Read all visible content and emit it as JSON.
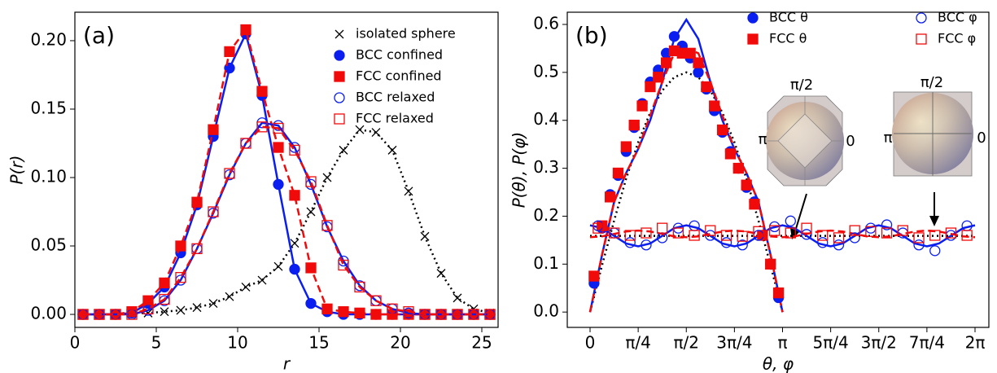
{
  "chart_data": [
    {
      "type": "line",
      "panel_label": "(a)",
      "x_label": "r",
      "y_label": "P(r)",
      "xlim": [
        0,
        26
      ],
      "xticks": [
        0,
        5,
        10,
        15,
        20,
        25
      ],
      "ylim": [
        -0.0095,
        0.2208
      ],
      "yticks": [
        {
          "value": 0,
          "label": "0.00"
        },
        {
          "value": 0.05,
          "label": "0.05"
        },
        {
          "value": 0.1,
          "label": "0.10"
        },
        {
          "value": 0.15,
          "label": "0.15"
        },
        {
          "value": 0.2,
          "label": "0.20"
        }
      ],
      "legend": "upper right",
      "x": [
        0.5,
        1.5,
        2.5,
        3.5,
        4.5,
        5.5,
        6.5,
        7.5,
        8.5,
        9.5,
        10.5,
        11.5,
        12.5,
        13.5,
        14.5,
        15.5,
        16.5,
        17.5,
        18.5,
        19.5,
        20.5,
        21.5,
        22.5,
        23.5,
        24.5,
        25.5
      ],
      "series": [
        {
          "name": "isolated sphere",
          "color": "#000000",
          "marker": "x",
          "filled": false,
          "line_style": "dotted",
          "values": [
            0,
            0,
            0,
            0.001,
            0.001,
            0.002,
            0.003,
            0.005,
            0.008,
            0.013,
            0.02,
            0.025,
            0.035,
            0.052,
            0.075,
            0.1,
            0.12,
            0.135,
            0.133,
            0.12,
            0.09,
            0.057,
            0.03,
            0.012,
            0.004,
            0.001
          ]
        },
        {
          "name": "BCC confined",
          "color": "#0a1ef0",
          "marker": "circle",
          "filled": true,
          "line_style": "solid",
          "values": [
            0,
            0,
            0,
            0.001,
            0.008,
            0.02,
            0.045,
            0.08,
            0.13,
            0.18,
            0.205,
            0.16,
            0.095,
            0.033,
            0.008,
            0.002,
            0,
            0,
            0,
            0,
            0,
            0,
            0,
            0,
            0,
            0
          ]
        },
        {
          "name": "FCC confined",
          "color": "#f00a0a",
          "marker": "square",
          "filled": true,
          "line_style": "dashed",
          "values": [
            0,
            0,
            0,
            0.002,
            0.01,
            0.023,
            0.05,
            0.082,
            0.135,
            0.192,
            0.208,
            0.163,
            0.122,
            0.087,
            0.034,
            0.004,
            0.002,
            0.001,
            0,
            0,
            0,
            0,
            0,
            0,
            0,
            0
          ]
        },
        {
          "name": "BCC relaxed",
          "color": "#0a1ef0",
          "marker": "circle",
          "filled": false,
          "line_style": "solid",
          "values": [
            0,
            0,
            0,
            0,
            0.003,
            0.01,
            0.025,
            0.048,
            0.074,
            0.102,
            0.125,
            0.14,
            0.138,
            0.122,
            0.095,
            0.064,
            0.039,
            0.021,
            0.01,
            0.004,
            0.001,
            0,
            0,
            0,
            0,
            0
          ]
        },
        {
          "name": "FCC relaxed",
          "color": "#f00a0a",
          "marker": "square",
          "filled": false,
          "line_style": "dashed",
          "values": [
            0,
            0,
            0,
            0,
            0.004,
            0.011,
            0.027,
            0.048,
            0.075,
            0.103,
            0.125,
            0.137,
            0.136,
            0.12,
            0.097,
            0.065,
            0.036,
            0.02,
            0.01,
            0.004,
            0.002,
            0,
            0,
            0,
            0,
            0
          ]
        }
      ]
    },
    {
      "type": "scatter",
      "panel_label": "(b)",
      "x_label": "θ, φ",
      "y_label": "P(θ), P(φ)",
      "xlim": [
        -0.372,
        6.509
      ],
      "xticks": [
        {
          "value": 0,
          "label": "0"
        },
        {
          "value": 0.7854,
          "label": "π/4"
        },
        {
          "value": 1.5708,
          "label": "π/2"
        },
        {
          "value": 2.3562,
          "label": "3π/4"
        },
        {
          "value": 3.1416,
          "label": "π"
        },
        {
          "value": 3.927,
          "label": "5π/4"
        },
        {
          "value": 4.7124,
          "label": "3π/2"
        },
        {
          "value": 5.4978,
          "label": "7π/4"
        },
        {
          "value": 6.2832,
          "label": "2π"
        }
      ],
      "ylim": [
        -0.032,
        0.6255
      ],
      "yticks": [
        {
          "value": 0,
          "label": "0.0"
        },
        0.1,
        0.2,
        0.3,
        0.4,
        0.5,
        0.6
      ],
      "legend": "upper right",
      "legend_columns": 2,
      "series": [
        {
          "name": "BCC θ",
          "color": "#0a1ef0",
          "marker": "circle",
          "filled": true,
          "x": [
            0.065,
            0.196,
            0.327,
            0.458,
            0.589,
            0.72,
            0.851,
            0.982,
            1.113,
            1.244,
            1.374,
            1.505,
            1.636,
            1.767,
            1.898,
            2.029,
            2.16,
            2.291,
            2.422,
            2.553,
            2.683,
            2.814,
            2.945,
            3.076
          ],
          "values": [
            0.06,
            0.175,
            0.245,
            0.285,
            0.335,
            0.385,
            0.435,
            0.48,
            0.505,
            0.54,
            0.575,
            0.555,
            0.53,
            0.5,
            0.465,
            0.42,
            0.375,
            0.335,
            0.3,
            0.26,
            0.23,
            0.16,
            0.1,
            0.03
          ]
        },
        {
          "name": "FCC θ",
          "color": "#f00a0a",
          "marker": "square",
          "filled": true,
          "x": [
            0.065,
            0.196,
            0.327,
            0.458,
            0.589,
            0.72,
            0.851,
            0.982,
            1.113,
            1.244,
            1.374,
            1.505,
            1.636,
            1.767,
            1.898,
            2.029,
            2.16,
            2.291,
            2.422,
            2.553,
            2.683,
            2.814,
            2.945,
            3.076
          ],
          "values": [
            0.075,
            0.18,
            0.24,
            0.29,
            0.345,
            0.39,
            0.43,
            0.47,
            0.49,
            0.52,
            0.545,
            0.54,
            0.54,
            0.52,
            0.47,
            0.43,
            0.38,
            0.33,
            0.3,
            0.265,
            0.225,
            0.16,
            0.1,
            0.04
          ]
        },
        {
          "name": "BCC φ",
          "color": "#0a1ef0",
          "marker": "circle",
          "filled": false,
          "x": [
            0.131,
            0.393,
            0.654,
            0.916,
            1.178,
            1.44,
            1.702,
            1.963,
            2.225,
            2.487,
            2.749,
            3.011,
            3.272,
            3.534,
            3.796,
            4.058,
            4.32,
            4.581,
            4.843,
            5.105,
            5.367,
            5.629,
            5.89,
            6.152
          ],
          "values": [
            0.18,
            0.165,
            0.145,
            0.14,
            0.155,
            0.175,
            0.18,
            0.16,
            0.145,
            0.14,
            0.16,
            0.178,
            0.19,
            0.162,
            0.145,
            0.14,
            0.155,
            0.175,
            0.182,
            0.165,
            0.14,
            0.128,
            0.16,
            0.18
          ]
        },
        {
          "name": "FCC φ",
          "color": "#f00a0a",
          "marker": "square",
          "filled": false,
          "x": [
            0.131,
            0.393,
            0.654,
            0.916,
            1.178,
            1.44,
            1.702,
            1.963,
            2.225,
            2.487,
            2.749,
            3.011,
            3.272,
            3.534,
            3.796,
            4.058,
            4.32,
            4.581,
            4.843,
            5.105,
            5.367,
            5.629,
            5.89,
            6.152
          ],
          "values": [
            0.175,
            0.165,
            0.16,
            0.165,
            0.175,
            0.165,
            0.16,
            0.17,
            0.16,
            0.158,
            0.168,
            0.17,
            0.165,
            0.175,
            0.16,
            0.155,
            0.17,
            0.168,
            0.165,
            0.17,
            0.155,
            0.16,
            0.165,
            0.16
          ]
        }
      ],
      "fit_lines": [
        {
          "color": "#000000",
          "line_style": "dotted",
          "x": [
            0,
            0.196,
            0.393,
            0.589,
            0.785,
            0.982,
            1.178,
            1.374,
            1.571,
            1.767,
            1.963,
            2.16,
            2.356,
            2.553,
            2.749,
            2.945,
            3.142
          ],
          "values": [
            0,
            0.098,
            0.191,
            0.278,
            0.354,
            0.416,
            0.462,
            0.49,
            0.5,
            0.49,
            0.462,
            0.416,
            0.354,
            0.278,
            0.191,
            0.098,
            0
          ]
        },
        {
          "color": "#0a1ef0",
          "line_style": "solid",
          "x": [
            0,
            0.196,
            0.393,
            0.589,
            0.785,
            0.982,
            1.178,
            1.374,
            1.571,
            1.767,
            1.963,
            2.16,
            2.356,
            2.553,
            2.749,
            2.945,
            3.142
          ],
          "values": [
            0,
            0.12,
            0.23,
            0.29,
            0.34,
            0.4,
            0.48,
            0.57,
            0.61,
            0.57,
            0.48,
            0.4,
            0.34,
            0.29,
            0.23,
            0.12,
            0
          ]
        },
        {
          "color": "#f00a0a",
          "line_style": "dashed",
          "x": [
            0,
            0.196,
            0.393,
            0.589,
            0.785,
            0.982,
            1.178,
            1.374,
            1.571,
            1.767,
            1.963,
            2.16,
            2.356,
            2.553,
            2.749,
            2.945,
            3.142
          ],
          "values": [
            0,
            0.12,
            0.23,
            0.29,
            0.34,
            0.41,
            0.48,
            0.54,
            0.55,
            0.54,
            0.48,
            0.41,
            0.34,
            0.29,
            0.23,
            0.12,
            0
          ]
        },
        {
          "color": "#000000",
          "line_style": "dotted",
          "x": [
            0,
            6.283
          ],
          "values": [
            0.159,
            0.159
          ]
        },
        {
          "color": "#0a1ef0",
          "line_style": "solid",
          "x": [
            0,
            0.196,
            0.393,
            0.589,
            0.785,
            0.982,
            1.178,
            1.374,
            1.571,
            1.767,
            1.963,
            2.16,
            2.356,
            2.553,
            2.749,
            2.945,
            3.142,
            3.338,
            3.534,
            3.731,
            3.927,
            4.123,
            4.32,
            4.516,
            4.712,
            4.909,
            5.105,
            5.301,
            5.498,
            5.694,
            5.89,
            6.087,
            6.283
          ],
          "values": [
            0.181,
            0.175,
            0.159,
            0.143,
            0.137,
            0.143,
            0.159,
            0.175,
            0.181,
            0.175,
            0.159,
            0.143,
            0.137,
            0.143,
            0.159,
            0.175,
            0.181,
            0.175,
            0.159,
            0.143,
            0.137,
            0.143,
            0.159,
            0.175,
            0.181,
            0.175,
            0.159,
            0.143,
            0.137,
            0.143,
            0.159,
            0.175,
            0.181
          ]
        },
        {
          "color": "#f00a0a",
          "line_style": "dashed",
          "x": [
            0,
            0.196,
            0.393,
            0.589,
            0.785,
            0.982,
            1.178,
            1.374,
            1.571,
            1.767,
            1.963,
            2.16,
            2.356,
            2.553,
            2.749,
            2.945,
            3.142,
            3.338,
            3.534,
            3.731,
            3.927,
            4.123,
            4.32,
            4.516,
            4.712,
            4.909,
            5.105,
            5.301,
            5.498,
            5.694,
            5.89,
            6.087,
            6.283
          ],
          "values": [
            0.156,
            0.158,
            0.163,
            0.168,
            0.17,
            0.168,
            0.163,
            0.158,
            0.156,
            0.158,
            0.163,
            0.168,
            0.17,
            0.168,
            0.163,
            0.158,
            0.156,
            0.158,
            0.163,
            0.168,
            0.17,
            0.168,
            0.163,
            0.158,
            0.156,
            0.158,
            0.163,
            0.168,
            0.17,
            0.168,
            0.163,
            0.158,
            0.156
          ]
        }
      ],
      "insets": [
        {
          "top": "π/2",
          "left": "π",
          "right": "0"
        },
        {
          "top": "π/2",
          "left": "π",
          "right": "0"
        }
      ]
    }
  ]
}
